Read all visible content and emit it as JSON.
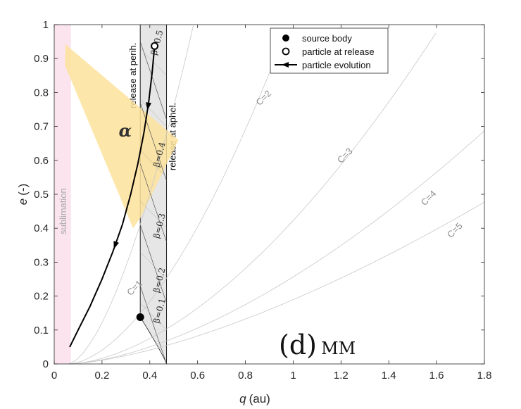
{
  "chart_data": {
    "type": "line",
    "xlabel_var": "q",
    "xlabel_unit": "(au)",
    "ylabel_var": "e",
    "ylabel_unit": "(-)",
    "xlim": [
      0,
      1.8
    ],
    "ylim": [
      0,
      1
    ],
    "xticks": [
      0,
      0.2,
      0.4,
      0.6,
      0.8,
      1,
      1.2,
      1.4,
      1.6,
      1.8
    ],
    "yticks": [
      0,
      0.1,
      0.2,
      0.3,
      0.4,
      0.5,
      0.6,
      0.7,
      0.8,
      0.9,
      1
    ],
    "xtick_labels": [
      "0",
      "0.2",
      "0.4",
      "0.6",
      "0.8",
      "1",
      "1.2",
      "1.4",
      "1.6",
      "1.8"
    ],
    "ytick_labels": [
      "0",
      "0.1",
      "0.2",
      "0.3",
      "0.4",
      "0.5",
      "0.6",
      "0.7",
      "0.8",
      "0.9",
      "1"
    ],
    "panel_label": "(d)",
    "panel_sublabel": "MM",
    "legend": [
      {
        "marker": "filled-circle",
        "label": "source body"
      },
      {
        "marker": "open-circle",
        "label": "particle at release"
      },
      {
        "marker": "arrow-line",
        "label": "particle evolution"
      }
    ],
    "regions": {
      "sublimation": {
        "label": "sublimation",
        "q_range": [
          0,
          0.07
        ],
        "color": "#fce4ef"
      },
      "alpha": {
        "label": "α",
        "color": "#fde29a",
        "polygon": [
          [
            0.047,
            0.95
          ],
          [
            0.045,
            0.88
          ],
          [
            0.33,
            0.4
          ],
          [
            0.36,
            0.43
          ],
          [
            0.52,
            0.66
          ],
          [
            0.05,
            0.94
          ]
        ]
      },
      "release_band": {
        "q_peri": 0.36,
        "q_aph": 0.47,
        "color": "#e6e6e6",
        "label_peri": "release at perih.",
        "label_aph": "release at aphel."
      }
    },
    "source_body": {
      "q": 0.36,
      "e": 0.138
    },
    "particle_at_release": {
      "q": 0.42,
      "e": 0.937
    },
    "particle_track": {
      "q": [
        0.42,
        0.41,
        0.395,
        0.375,
        0.35,
        0.32,
        0.285,
        0.245,
        0.2,
        0.15,
        0.1,
        0.065
      ],
      "e": [
        0.937,
        0.86,
        0.77,
        0.68,
        0.59,
        0.5,
        0.41,
        0.33,
        0.25,
        0.17,
        0.1,
        0.05
      ],
      "arrows_at_e": [
        0.76,
        0.35
      ]
    },
    "beta_lines": [
      {
        "label": "β=0.1",
        "beta": 0.1,
        "label_q": 0.475,
        "label_e": 0.155
      },
      {
        "label": "β=0.2",
        "beta": 0.2,
        "label_q": 0.475,
        "label_e": 0.245
      },
      {
        "label": "β=0.3",
        "beta": 0.3,
        "label_q": 0.475,
        "label_e": 0.405
      },
      {
        "label": "β=0.4",
        "beta": 0.4,
        "label_q": 0.475,
        "label_e": 0.615
      },
      {
        "label": "β=0.5",
        "beta": 0.5,
        "label_q": 0.465,
        "label_e": 0.945
      }
    ],
    "c_curves": [
      {
        "label": "C=1",
        "C": 1,
        "label_q": 0.32,
        "label_e": 0.2
      },
      {
        "label": "C=2",
        "C": 2,
        "label_q": 0.86,
        "label_e": 0.76
      },
      {
        "label": "C=3",
        "C": 3,
        "label_q": 1.2,
        "label_e": 0.59
      },
      {
        "label": "C=4",
        "C": 4,
        "label_q": 1.55,
        "label_e": 0.465
      },
      {
        "label": "C=5",
        "C": 5,
        "label_q": 1.66,
        "label_e": 0.37
      }
    ]
  }
}
